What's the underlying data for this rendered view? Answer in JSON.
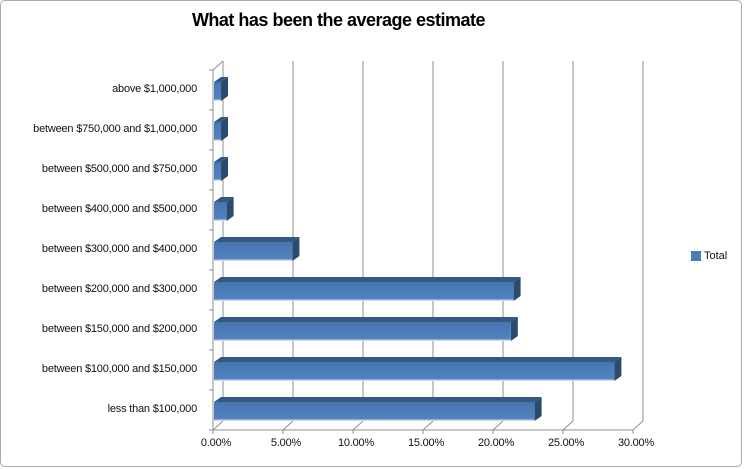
{
  "chart_data": {
    "type": "bar",
    "orientation": "horizontal",
    "style": "3d",
    "title": "What has been the average estimate",
    "categories_top_to_bottom": [
      "above $1,000,000",
      "between $750,000 and $1,000,000",
      "between $500,000 and $750,000",
      "between $400,000 and $500,000",
      "between $300,000 and $400,000",
      "between $200,000 and $300,000",
      "between $150,000 and $200,000",
      "between $100,000 and $150,000",
      "less than $100,000"
    ],
    "series": [
      {
        "name": "Total",
        "values_percent": [
          0.5,
          0.5,
          0.5,
          0.9,
          5.6,
          21.4,
          21.2,
          28.6,
          22.9
        ]
      }
    ],
    "x_axis": {
      "min_percent": 0,
      "max_percent": 30,
      "tick_step_percent": 5,
      "tick_labels": [
        "0.00%",
        "5.00%",
        "10.00%",
        "15.00%",
        "20.00%",
        "25.00%",
        "30.00%"
      ]
    },
    "legend": {
      "position": "right",
      "entries": [
        "Total"
      ]
    },
    "grid": "vertical-gridlines-on",
    "colors": {
      "bar_front_top": "#4676b2",
      "bar_front_bottom": "#5484c1",
      "bar_top_face": "#35597f",
      "bar_side_face": "#2a4a6e",
      "bar_bottom_highlight": "#ccd9ea",
      "gridline": "#8f8f8f",
      "axis": "#8f8f8f",
      "text": "#000000",
      "legend_swatch": "#4c7cb8",
      "chart_border": "#ababab",
      "background": "#ffffff"
    }
  }
}
